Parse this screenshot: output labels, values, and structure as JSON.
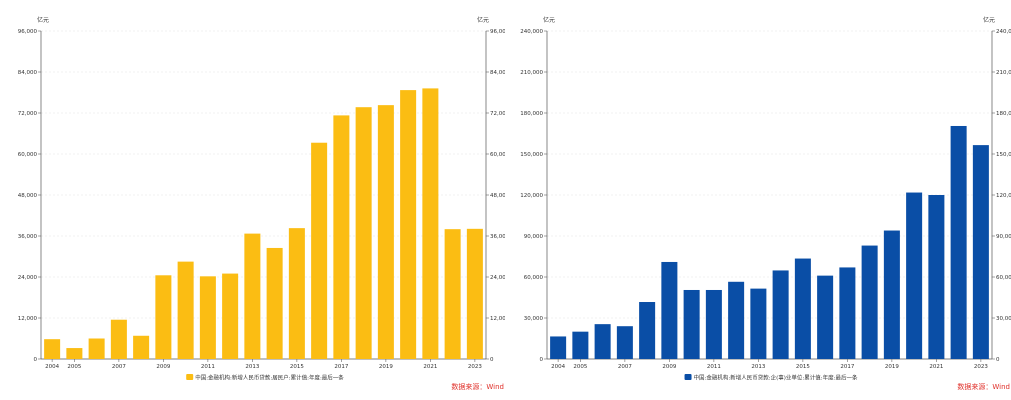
{
  "chart_data": [
    {
      "type": "bar",
      "unit_left": "亿元",
      "unit_right": "亿元",
      "categories": [
        "2004",
        "2005",
        "2006",
        "2007",
        "2008",
        "2009",
        "2010",
        "2011",
        "2012",
        "2013",
        "2014",
        "2015",
        "2016",
        "2017",
        "2018",
        "2019",
        "2020",
        "2021",
        "2022",
        "2023"
      ],
      "x_tick_labels": [
        "2004",
        "2005",
        "2007",
        "2009",
        "2011",
        "2013",
        "2015",
        "2017",
        "2019",
        "2021",
        "2023"
      ],
      "series": [
        {
          "name": "中国:金融机构:新增人民币贷款:居民户:累计值:年度:最后一条",
          "color": "#fbbd13",
          "values": [
            5800,
            3200,
            6000,
            11500,
            6800,
            24500,
            28500,
            24200,
            25000,
            36700,
            32500,
            38300,
            63300,
            71300,
            73700,
            74300,
            78700,
            79200,
            38000,
            38100
          ]
        }
      ],
      "ylim": [
        0,
        96000
      ],
      "yticks": [
        0,
        12000,
        24000,
        36000,
        48000,
        60000,
        72000,
        84000,
        96000
      ],
      "ytick_labels": [
        "0",
        "12,000",
        "24,000",
        "36,000",
        "48,000",
        "60,000",
        "72,000",
        "84,000",
        "96,000"
      ],
      "grid": true,
      "legend": "bottom-center",
      "source": "数据来源：Wind"
    },
    {
      "type": "bar",
      "unit_left": "亿元",
      "unit_right": "亿元",
      "categories": [
        "2004",
        "2005",
        "2006",
        "2007",
        "2008",
        "2009",
        "2010",
        "2011",
        "2012",
        "2013",
        "2014",
        "2015",
        "2016",
        "2017",
        "2018",
        "2019",
        "2020",
        "2021",
        "2022",
        "2023"
      ],
      "x_tick_labels": [
        "2004",
        "2005",
        "2007",
        "2009",
        "2011",
        "2013",
        "2015",
        "2017",
        "2019",
        "2021",
        "2023"
      ],
      "series": [
        {
          "name": "中国:金融机构:新增人民币贷款:企(事)业单位:累计值:年度:最后一条",
          "color": "#0a4ea6",
          "values": [
            16500,
            20000,
            25500,
            24000,
            41700,
            71000,
            50500,
            50500,
            56500,
            51500,
            64800,
            73500,
            61000,
            67000,
            83000,
            94000,
            121800,
            120000,
            170500,
            156500
          ]
        }
      ],
      "ylim": [
        0,
        240000
      ],
      "yticks": [
        0,
        30000,
        60000,
        90000,
        120000,
        150000,
        180000,
        210000,
        240000
      ],
      "ytick_labels": [
        "0",
        "30,000",
        "60,000",
        "90,000",
        "120,000",
        "150,000",
        "180,000",
        "210,000",
        "240,000"
      ],
      "grid": true,
      "legend": "bottom-center",
      "source": "数据来源：Wind"
    }
  ]
}
